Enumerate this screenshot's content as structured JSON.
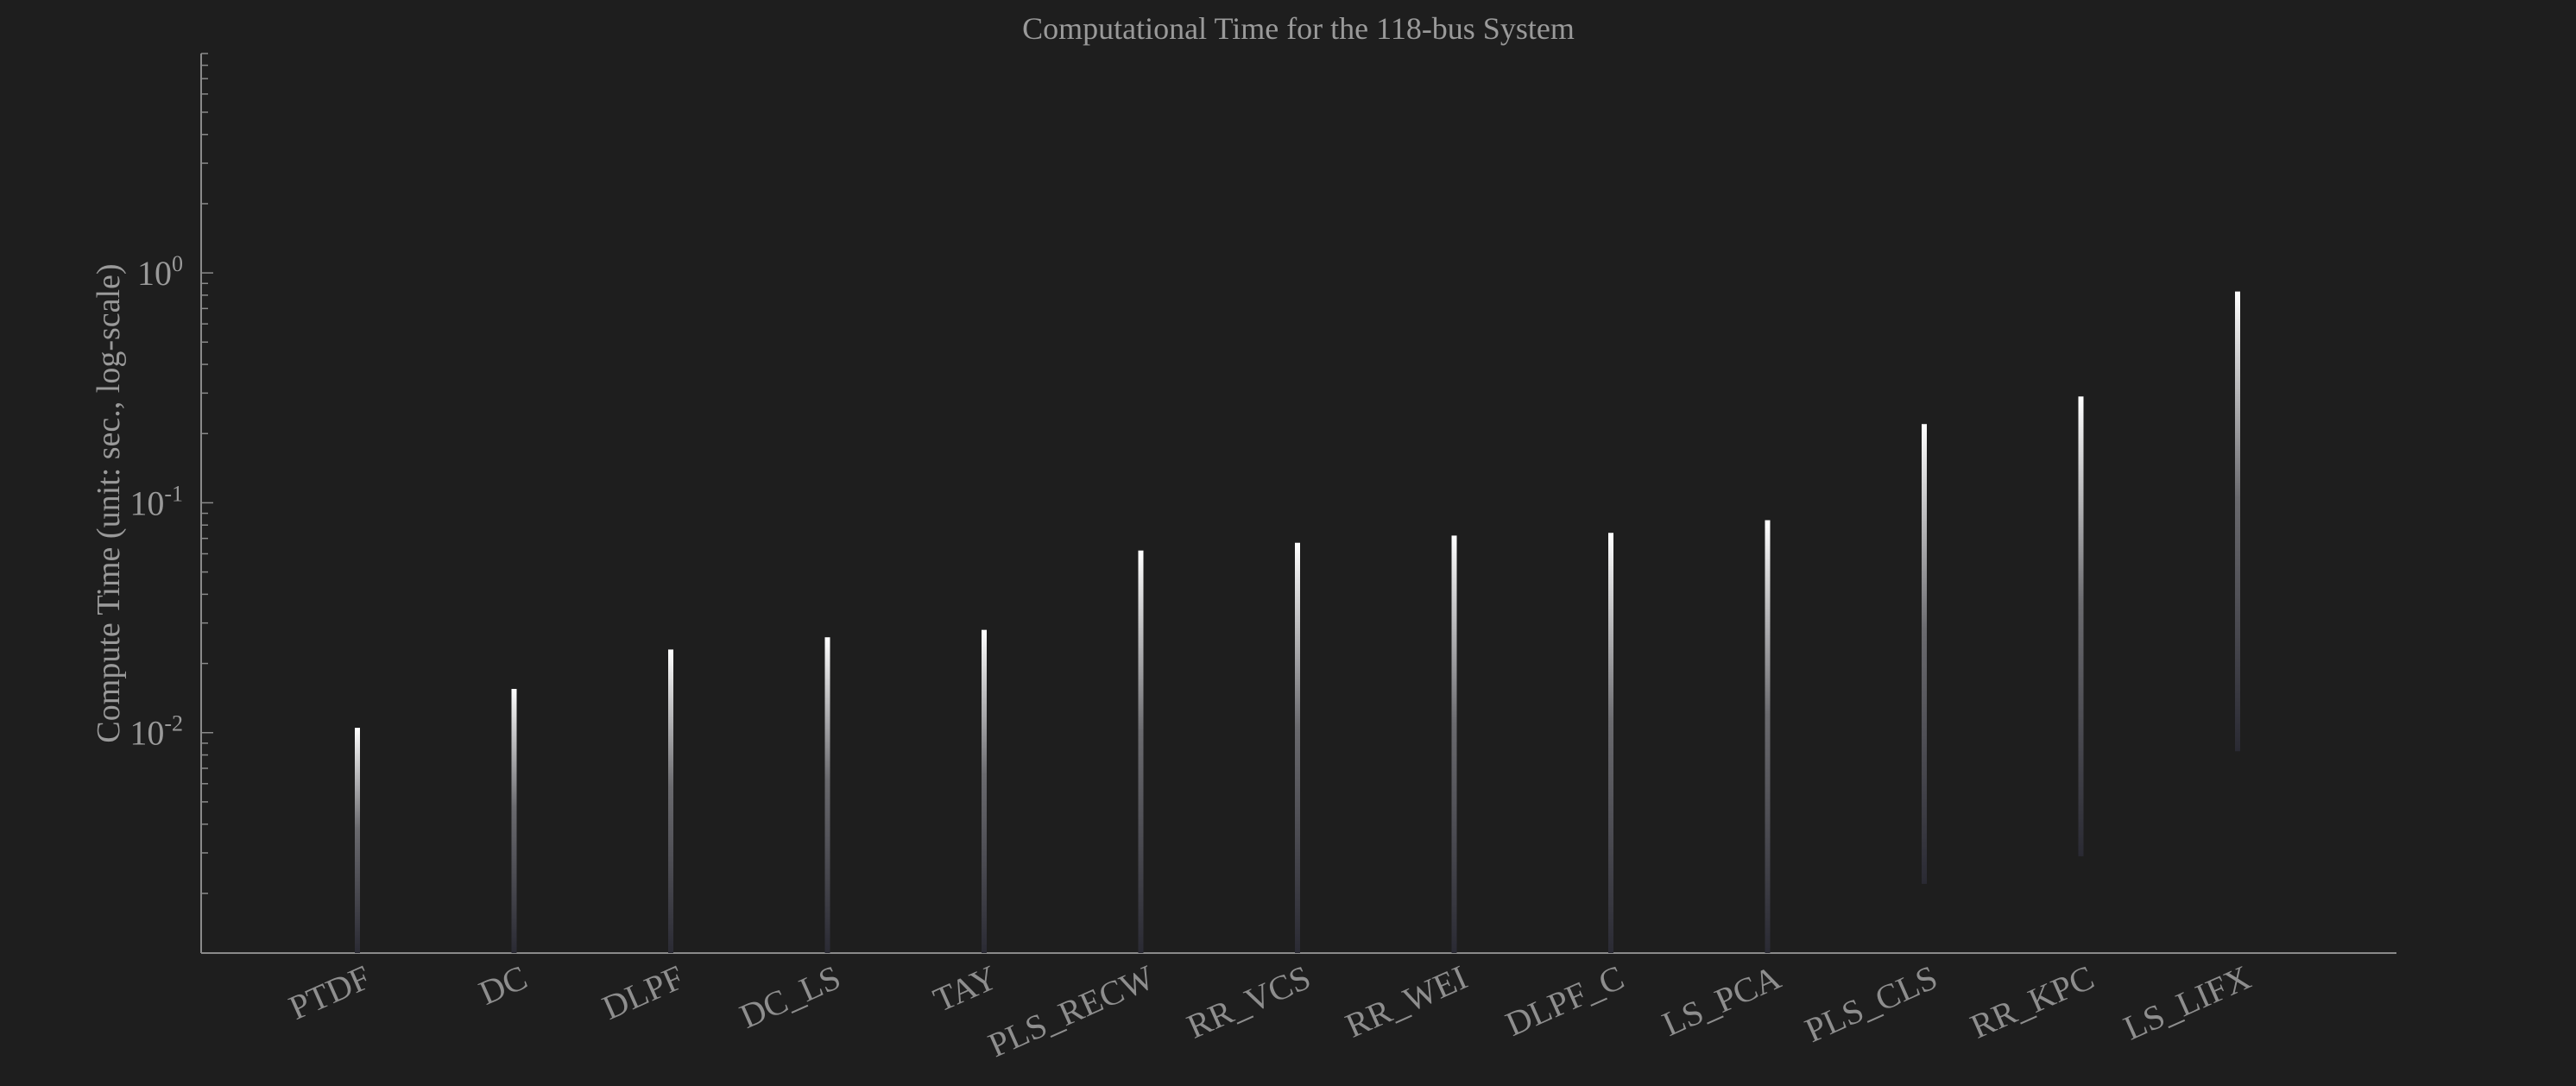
{
  "chart_data": {
    "type": "bar",
    "title": "Computational Time for the 118-bus System",
    "ylabel": "Compute Time (unit: sec., log-scale)",
    "xlabel": "",
    "yscale": "log",
    "ylim": [
      0.0011,
      9
    ],
    "yticks": [
      {
        "value": 0.01,
        "base": "10",
        "exp": "-2"
      },
      {
        "value": 0.1,
        "base": "10",
        "exp": "-1"
      },
      {
        "value": 1,
        "base": "10",
        "exp": "0"
      }
    ],
    "grid": false,
    "legend": "none",
    "colors": {
      "background": "#1e1e1e",
      "axis": "#8a8a8a",
      "text": "#9a9a9a",
      "bar_top": "#ffffff",
      "bar_bottom": "#2a2a33"
    },
    "categories": [
      "PTDF",
      "DC",
      "DLPF",
      "DC_LS",
      "TAY",
      "PLS_RECW",
      "RR_VCS",
      "RR_WEI",
      "DLPF_C",
      "LS_PCA",
      "PLS_CLS",
      "RR_KPC",
      "LS_LIFX"
    ],
    "values": [
      0.0105,
      0.0155,
      0.023,
      0.026,
      0.028,
      0.062,
      0.067,
      0.072,
      0.074,
      0.084,
      0.22,
      0.29,
      0.83
    ],
    "lower": [
      0.0011,
      0.0011,
      0.0011,
      0.0011,
      0.0011,
      0.0011,
      0.0011,
      0.0011,
      0.0011,
      0.0011,
      0.0022,
      0.0029,
      0.0083
    ]
  }
}
